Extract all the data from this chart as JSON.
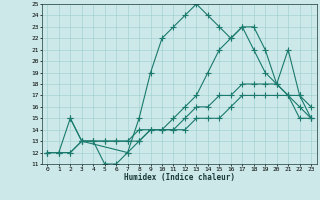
{
  "title": "",
  "xlabel": "Humidex (Indice chaleur)",
  "bg_color": "#cce8e8",
  "line_color": "#1a7a6e",
  "xlim": [
    -0.5,
    23.5
  ],
  "ylim": [
    11,
    25
  ],
  "xticks": [
    0,
    1,
    2,
    3,
    4,
    5,
    6,
    7,
    8,
    9,
    10,
    11,
    12,
    13,
    14,
    15,
    16,
    17,
    18,
    19,
    20,
    21,
    22,
    23
  ],
  "yticks": [
    11,
    12,
    13,
    14,
    15,
    16,
    17,
    18,
    19,
    20,
    21,
    22,
    23,
    24,
    25
  ],
  "line1_x": [
    0,
    1,
    2,
    3,
    4,
    5,
    6,
    7,
    8,
    9,
    10,
    11,
    12,
    13,
    14,
    15,
    16,
    17,
    18,
    19,
    20,
    21,
    22,
    23
  ],
  "line1_y": [
    12,
    12,
    15,
    13,
    13,
    11,
    11,
    12,
    13,
    14,
    14,
    15,
    16,
    17,
    19,
    21,
    22,
    23,
    23,
    21,
    18,
    17,
    16,
    15
  ],
  "line2_x": [
    0,
    1,
    2,
    3,
    4,
    5,
    6,
    7,
    8,
    9,
    10,
    11,
    12,
    13,
    14,
    15,
    16,
    17,
    18,
    19,
    20,
    21,
    22,
    23
  ],
  "line2_y": [
    12,
    12,
    12,
    13,
    13,
    13,
    13,
    13,
    14,
    14,
    14,
    14,
    14,
    15,
    15,
    15,
    16,
    17,
    17,
    17,
    17,
    17,
    15,
    15
  ],
  "line3_x": [
    2,
    3,
    7,
    8,
    9,
    10,
    11,
    12,
    13,
    14,
    15,
    16,
    17,
    18,
    19,
    20,
    21,
    22,
    23
  ],
  "line3_y": [
    15,
    13,
    12,
    15,
    19,
    22,
    23,
    24,
    25,
    24,
    23,
    22,
    23,
    21,
    19,
    18,
    17,
    17,
    16
  ],
  "line4_x": [
    0,
    1,
    2,
    3,
    4,
    5,
    6,
    7,
    8,
    9,
    10,
    11,
    12,
    13,
    14,
    15,
    16,
    17,
    18,
    19,
    20,
    21,
    22,
    23
  ],
  "line4_y": [
    12,
    12,
    12,
    13,
    13,
    13,
    13,
    13,
    13,
    14,
    14,
    14,
    15,
    16,
    16,
    17,
    17,
    18,
    18,
    18,
    18,
    21,
    17,
    15
  ]
}
